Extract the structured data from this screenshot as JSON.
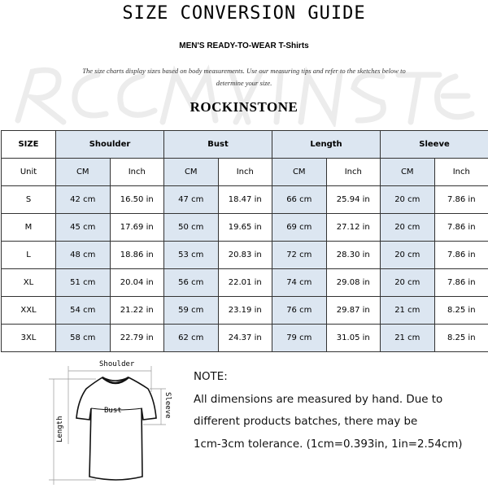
{
  "header": {
    "title": "SIZE CONVERSION GUIDE",
    "subtitle": "MEN'S READY-TO-WEAR T-Shirts",
    "description": "The size charts display sizes based on body measurements. Use our measuring tips and refer to the sketches below to determine your size.",
    "brand": "ROCKINSTONE",
    "watermark": "ROCKINSTONE"
  },
  "colors": {
    "header_cell": "#dce6f1",
    "border": "#333333"
  },
  "table": {
    "size_label": "SIZE",
    "unit_label": "Unit",
    "groups": [
      "Shoulder",
      "Bust",
      "Length",
      "Sleeve"
    ],
    "units": [
      "CM",
      "Inch"
    ],
    "rows": [
      {
        "size": "S",
        "values": [
          "42 cm",
          "16.50 in",
          "47 cm",
          "18.47 in",
          "66 cm",
          "25.94 in",
          "20 cm",
          "7.86 in"
        ]
      },
      {
        "size": "M",
        "values": [
          "45 cm",
          "17.69 in",
          "50 cm",
          "19.65 in",
          "69 cm",
          "27.12 in",
          "20 cm",
          "7.86 in"
        ]
      },
      {
        "size": "L",
        "values": [
          "48 cm",
          "18.86 in",
          "53 cm",
          "20.83 in",
          "72 cm",
          "28.30 in",
          "20 cm",
          "7.86 in"
        ]
      },
      {
        "size": "XL",
        "values": [
          "51 cm",
          "20.04 in",
          "56 cm",
          "22.01 in",
          "74 cm",
          "29.08 in",
          "20 cm",
          "7.86 in"
        ]
      },
      {
        "size": "XXL",
        "values": [
          "54 cm",
          "21.22 in",
          "59 cm",
          "23.19 in",
          "76 cm",
          "29.87 in",
          "21 cm",
          "8.25 in"
        ]
      },
      {
        "size": "3XL",
        "values": [
          "58 cm",
          "22.79 in",
          "62 cm",
          "24.37 in",
          "79 cm",
          "31.05 in",
          "21 cm",
          "8.25 in"
        ]
      }
    ]
  },
  "diagram": {
    "shoulder": "Shoulder",
    "bust": "Bust",
    "sleeve": "Sleeve",
    "length": "Length"
  },
  "note": {
    "heading": "NOTE:",
    "lines": [
      "All dimensions are measured by hand. Due to",
      "different products batches, there may be",
      "1cm-3cm tolerance. (1cm=0.393in, 1in=2.54cm)"
    ]
  }
}
